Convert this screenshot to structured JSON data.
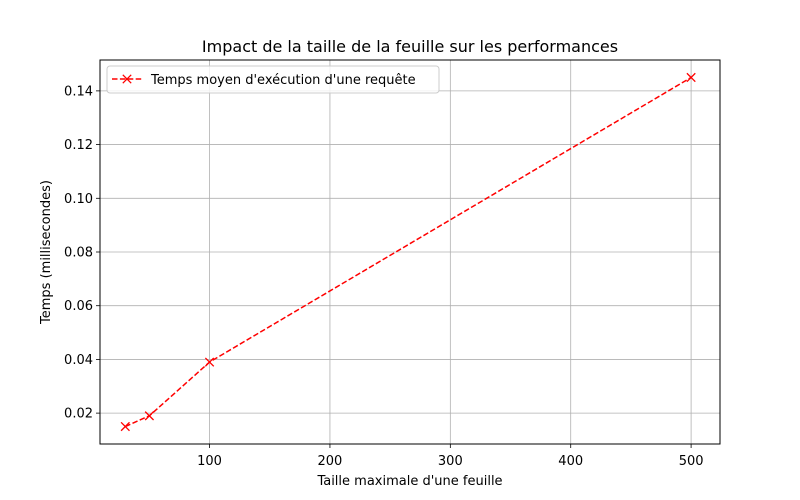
{
  "chart_data": {
    "type": "line",
    "title": "Impact de la taille de la feuille sur les performances",
    "xlabel": "Taille maximale d'une feuille",
    "ylabel": "Temps (millisecondes)",
    "xlim": [
      9,
      524
    ],
    "ylim": [
      0.0085,
      0.1515
    ],
    "xticks": [
      100,
      200,
      300,
      400,
      500
    ],
    "yticks": [
      0.02,
      0.04,
      0.06,
      0.08,
      0.1,
      0.12,
      0.14
    ],
    "xtick_labels": [
      "100",
      "200",
      "300",
      "400",
      "500"
    ],
    "ytick_labels": [
      "0.02",
      "0.04",
      "0.06",
      "0.08",
      "0.10",
      "0.12",
      "0.14"
    ],
    "grid": true,
    "legend_position": "top-left",
    "series": [
      {
        "name": "Temps moyen d'exécution d'une requête",
        "color": "#ff0000",
        "line_style": "dashed",
        "marker": "x",
        "x": [
          30,
          50,
          100,
          500
        ],
        "y": [
          0.015,
          0.019,
          0.039,
          0.145
        ]
      }
    ]
  }
}
